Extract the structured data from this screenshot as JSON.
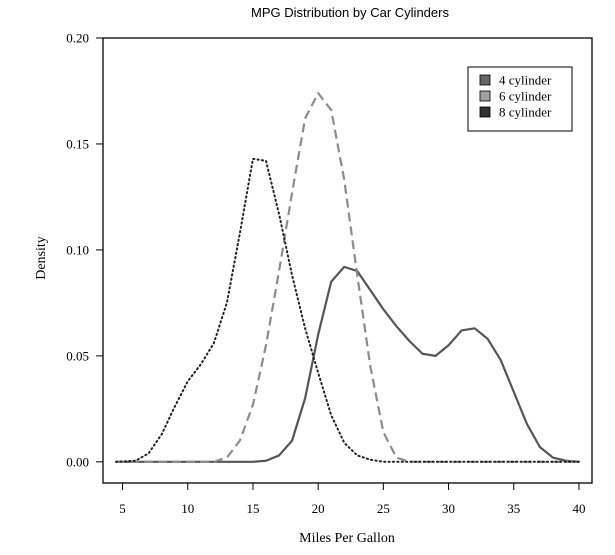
{
  "chart_data": {
    "type": "line",
    "title": "MPG Distribution by Car Cylinders",
    "xlabel": "Miles Per Gallon",
    "ylabel": "Density",
    "xlim": [
      3.5,
      41
    ],
    "ylim": [
      -0.01,
      0.2
    ],
    "xticks": [
      "5",
      "10",
      "15",
      "20",
      "25",
      "30",
      "35",
      "40"
    ],
    "yticks": [
      "0.00",
      "0.05",
      "0.10",
      "0.15",
      "0.20"
    ],
    "legend_position": "top-right",
    "grid": false,
    "series": [
      {
        "name": "4 cylinder",
        "line_style": "solid",
        "color": "#555555",
        "legend_color": "#666666",
        "x": [
          4.5,
          10,
          15,
          16,
          17,
          18,
          19,
          20,
          21,
          22,
          23,
          24,
          25,
          26,
          27,
          28,
          29,
          30,
          31,
          32,
          33,
          34,
          35,
          36,
          37,
          38,
          39,
          40
        ],
        "y": [
          0,
          0,
          0,
          0.0005,
          0.003,
          0.01,
          0.03,
          0.06,
          0.085,
          0.092,
          0.09,
          0.081,
          0.072,
          0.064,
          0.057,
          0.051,
          0.05,
          0.055,
          0.062,
          0.063,
          0.058,
          0.048,
          0.033,
          0.018,
          0.007,
          0.002,
          0.0005,
          0
        ]
      },
      {
        "name": "6 cylinder",
        "line_style": "dashed",
        "color": "#8c8c8c",
        "legend_color": "#a0a0a0",
        "x": [
          4.5,
          12,
          13,
          14,
          15,
          16,
          17,
          18,
          19,
          20,
          21,
          22,
          23,
          24,
          25,
          26,
          27,
          40
        ],
        "y": [
          0,
          0,
          0.002,
          0.01,
          0.027,
          0.055,
          0.09,
          0.127,
          0.162,
          0.174,
          0.166,
          0.133,
          0.088,
          0.045,
          0.014,
          0.002,
          0,
          0
        ]
      },
      {
        "name": "8 cylinder",
        "line_style": "dotted",
        "color": "#222222",
        "legend_color": "#333333",
        "x": [
          4.5,
          6,
          7,
          8,
          9,
          10,
          11,
          12,
          13,
          14,
          15,
          16,
          17,
          18,
          19,
          20,
          21,
          22,
          23,
          24,
          25,
          26,
          40
        ],
        "y": [
          0,
          0.0005,
          0.004,
          0.013,
          0.026,
          0.038,
          0.046,
          0.056,
          0.075,
          0.108,
          0.143,
          0.142,
          0.117,
          0.088,
          0.063,
          0.042,
          0.022,
          0.009,
          0.003,
          0.001,
          0,
          0,
          0
        ]
      }
    ]
  }
}
